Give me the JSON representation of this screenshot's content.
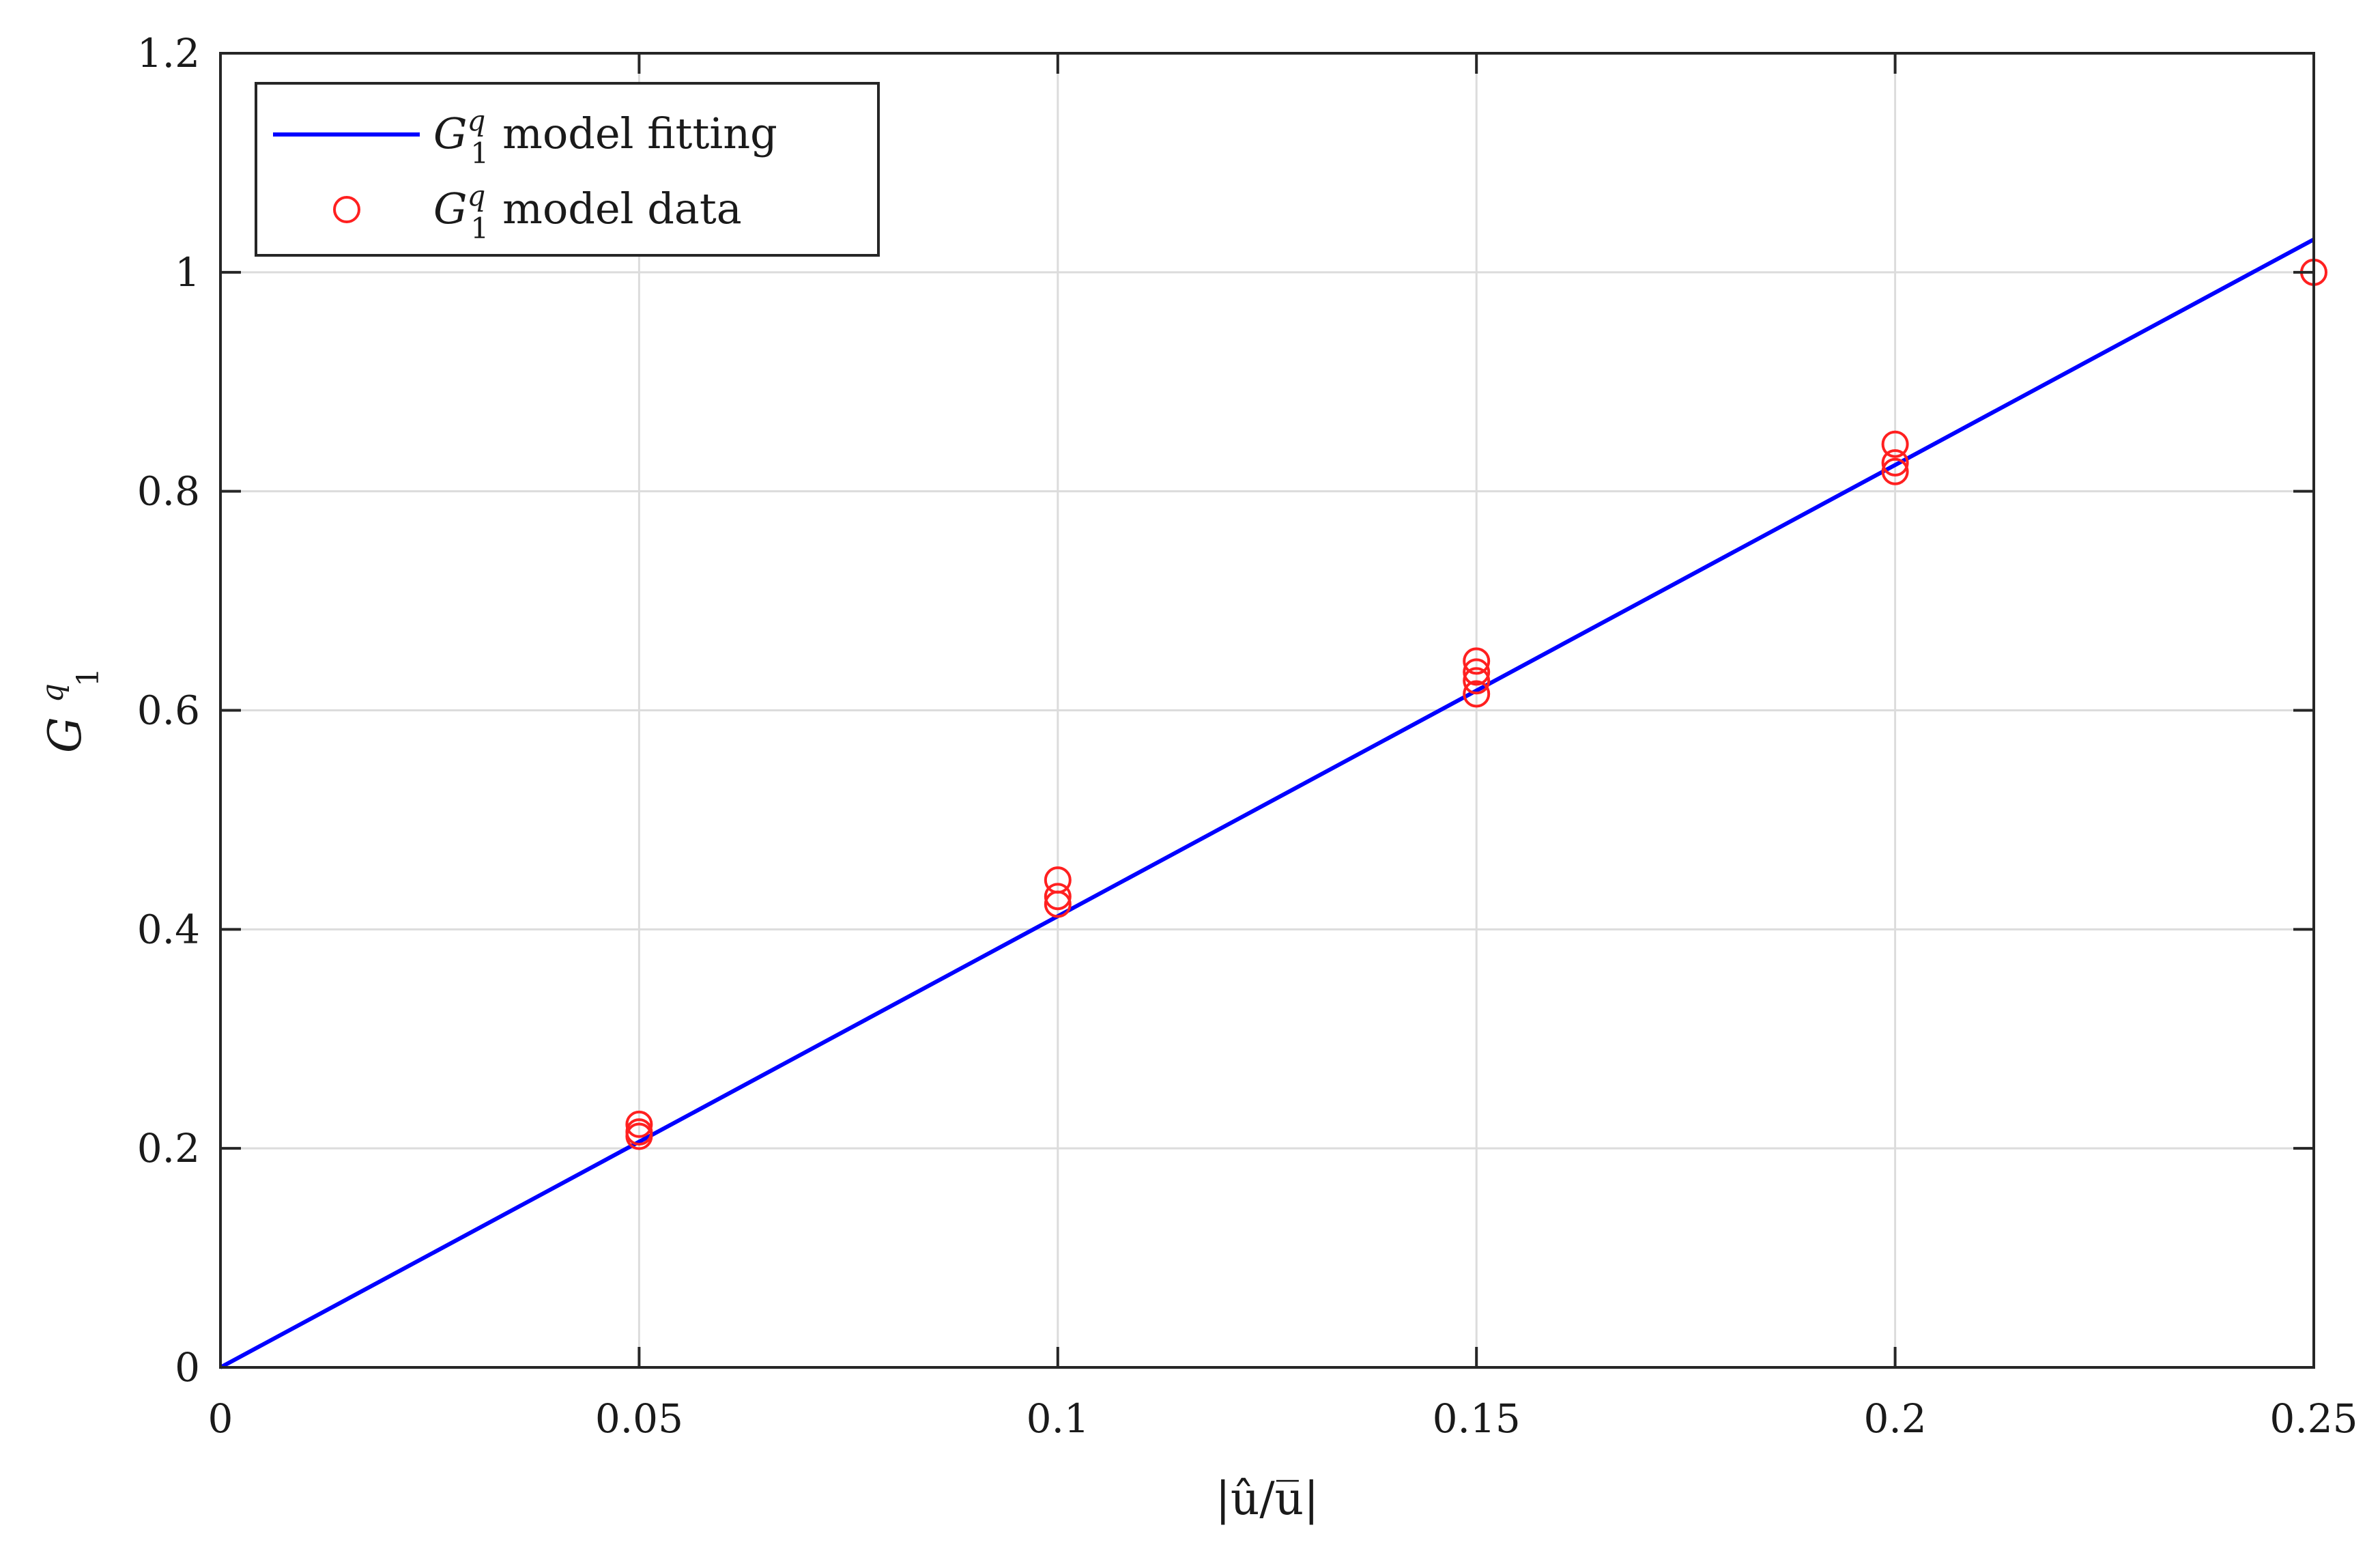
{
  "chart_data": {
    "type": "scatter",
    "title": "",
    "xlabel": "|û/u̅|",
    "ylabel": "G",
    "ylabel_sub": "1",
    "ylabel_sup": "q",
    "xlim": [
      0,
      0.25
    ],
    "ylim": [
      0,
      1.2
    ],
    "xticks": [
      0,
      0.05,
      0.1,
      0.15,
      0.2,
      0.25
    ],
    "xtick_labels": [
      "0",
      "0.05",
      "0.1",
      "0.15",
      "0.2",
      "0.25"
    ],
    "yticks": [
      0,
      0.2,
      0.4,
      0.6,
      0.8,
      1.0,
      1.2
    ],
    "ytick_labels": [
      "0",
      "0.2",
      "0.4",
      "0.6",
      "0.8",
      "1",
      "1.2"
    ],
    "grid": true,
    "legend_position": "top-left",
    "series": [
      {
        "name": "model fitting",
        "name_symbol": "G",
        "name_sub": "1",
        "name_sup": "q",
        "type": "line",
        "color": "#0000ff",
        "x": [
          0,
          0.25
        ],
        "y": [
          0,
          1.03
        ]
      },
      {
        "name": "model data",
        "name_symbol": "G",
        "name_sub": "1",
        "name_sup": "q",
        "type": "scatter",
        "marker": "circle-open",
        "color": "#ff2020",
        "x": [
          0.05,
          0.05,
          0.05,
          0.1,
          0.1,
          0.1,
          0.15,
          0.15,
          0.15,
          0.15,
          0.2,
          0.2,
          0.2,
          0.25
        ],
        "y": [
          0.222,
          0.215,
          0.211,
          0.445,
          0.43,
          0.423,
          0.645,
          0.635,
          0.627,
          0.615,
          0.843,
          0.826,
          0.818,
          1.0
        ]
      }
    ]
  }
}
